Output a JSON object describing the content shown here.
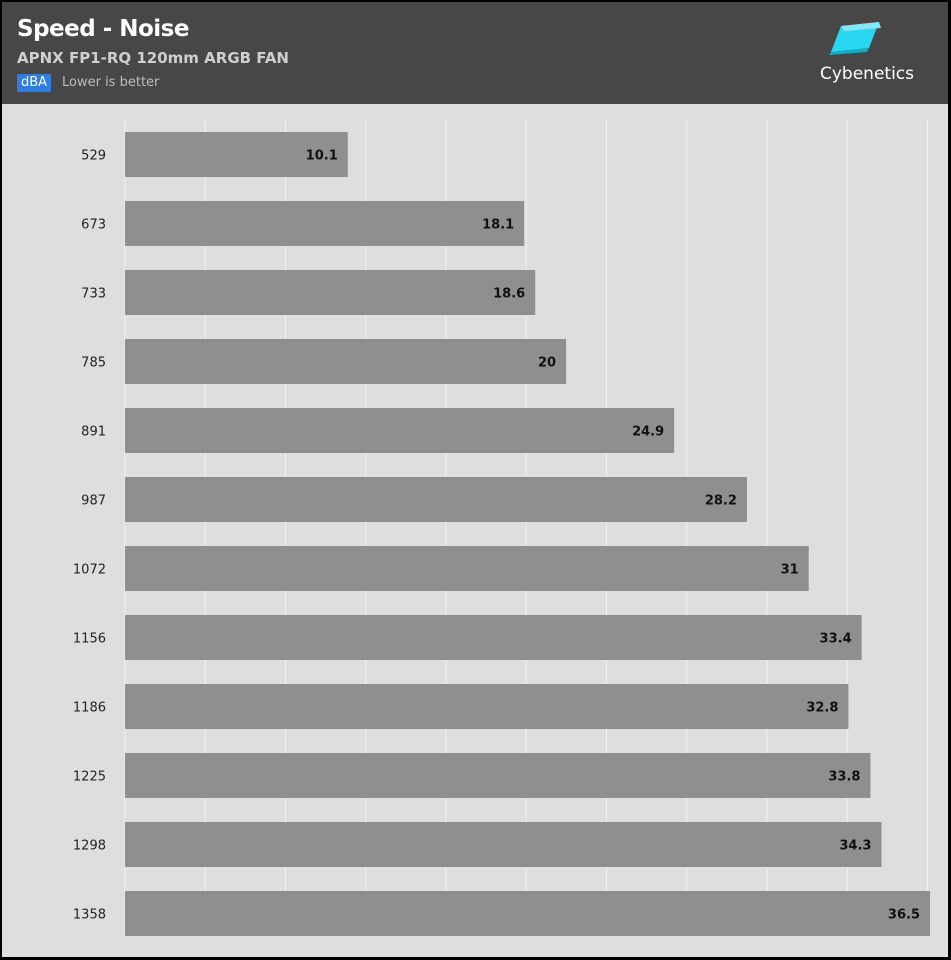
{
  "header": {
    "title": "Speed - Noise",
    "subtitle": "APNX FP1-RQ 120mm ARGB FAN",
    "unit": "dBA",
    "note": "Lower is better",
    "logo_text": "Cybenetics"
  },
  "colors": {
    "header_bg": "#474747",
    "chart_bg": "#dedede",
    "bar": "#8f8f8f",
    "badge": "#2f7de1",
    "logo_accent": "#29d8f0",
    "gridline": "#f2f2f2"
  },
  "chart_data": {
    "type": "bar",
    "orientation": "horizontal",
    "categories": [
      "529",
      "673",
      "733",
      "785",
      "891",
      "987",
      "1072",
      "1156",
      "1186",
      "1225",
      "1298",
      "1358"
    ],
    "values": [
      10.1,
      18.1,
      18.6,
      20,
      24.9,
      28.2,
      31,
      33.4,
      32.8,
      33.8,
      34.3,
      36.5
    ],
    "xlim": [
      0,
      36.5
    ],
    "grid": true,
    "data_labels": true
  }
}
